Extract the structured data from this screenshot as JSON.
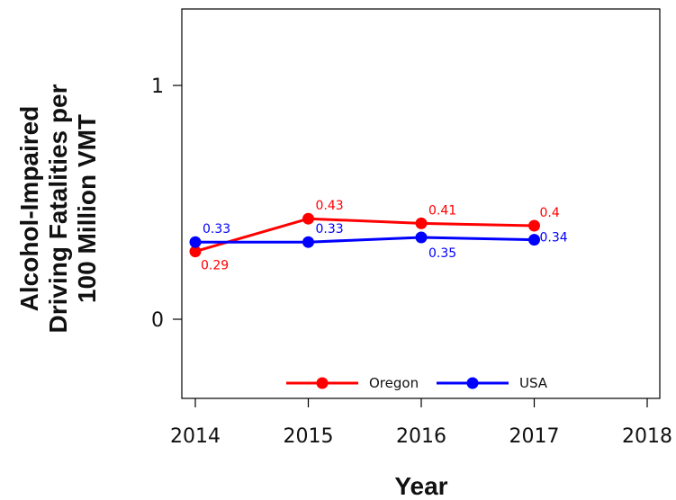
{
  "chart_data": {
    "type": "line",
    "xlabel": "Year",
    "ylabel_lines": [
      "Alcohol-Impaired",
      "Driving Fatalities per",
      "100 Million VMT"
    ],
    "x_ticks": [
      "2014",
      "2015",
      "2016",
      "2017",
      "2018"
    ],
    "y_ticks": [
      "0",
      "1"
    ],
    "xlim": [
      2014,
      2018
    ],
    "ylim": [
      -0.3,
      1.33
    ],
    "grid": false,
    "legend_position": "bottom-center",
    "series": [
      {
        "name": "Oregon",
        "color": "#ff0000",
        "x": [
          2014,
          2015,
          2016,
          2017
        ],
        "values": [
          0.29,
          0.43,
          0.41,
          0.4
        ],
        "labels": [
          "0.29",
          "0.43",
          "0.41",
          "0.4"
        ]
      },
      {
        "name": "USA",
        "color": "#0000ff",
        "x": [
          2014,
          2015,
          2016,
          2017
        ],
        "values": [
          0.33,
          0.33,
          0.35,
          0.34
        ],
        "labels": [
          "0.33",
          "0.33",
          "0.35",
          "0.34"
        ]
      }
    ]
  }
}
